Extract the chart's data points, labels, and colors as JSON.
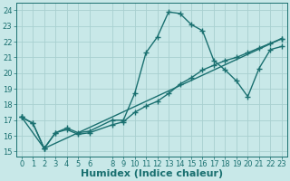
{
  "xlabel": "Humidex (Indice chaleur)",
  "background_color": "#c8e8e8",
  "grid_color": "#a8d0d0",
  "line_color": "#1a7070",
  "xlim": [
    -0.5,
    23.5
  ],
  "ylim": [
    14.7,
    24.5
  ],
  "yticks": [
    15,
    16,
    17,
    18,
    19,
    20,
    21,
    22,
    23,
    24
  ],
  "xticks": [
    0,
    1,
    2,
    3,
    4,
    5,
    6,
    8,
    9,
    10,
    11,
    12,
    13,
    14,
    15,
    16,
    17,
    18,
    19,
    20,
    21,
    22,
    23
  ],
  "line1_x": [
    0,
    1,
    2,
    3,
    4,
    5,
    6,
    8,
    9,
    10,
    11,
    12,
    13,
    14,
    15,
    16,
    17,
    18,
    19,
    20,
    21,
    22,
    23
  ],
  "line1_y": [
    17.2,
    16.8,
    15.2,
    16.2,
    16.5,
    16.2,
    16.3,
    17.0,
    17.0,
    18.7,
    21.3,
    22.3,
    23.9,
    23.8,
    23.1,
    22.7,
    20.8,
    20.2,
    19.5,
    18.5,
    20.3,
    21.5,
    21.7
  ],
  "line2_x": [
    0,
    1,
    2,
    3,
    4,
    5,
    6,
    8,
    9,
    10,
    11,
    12,
    13,
    14,
    15,
    16,
    17,
    18,
    19,
    20,
    21,
    22,
    23
  ],
  "line2_y": [
    17.2,
    16.8,
    15.2,
    16.2,
    16.4,
    16.1,
    16.2,
    16.7,
    16.9,
    17.5,
    17.9,
    18.2,
    18.7,
    19.3,
    19.7,
    20.2,
    20.5,
    20.8,
    21.0,
    21.3,
    21.6,
    21.9,
    22.2
  ],
  "line3_x": [
    0,
    2,
    23
  ],
  "line3_y": [
    17.2,
    15.2,
    22.2
  ],
  "fontsize_label": 8,
  "fontsize_tick": 6,
  "markersize": 2.5,
  "linewidth": 1.0
}
